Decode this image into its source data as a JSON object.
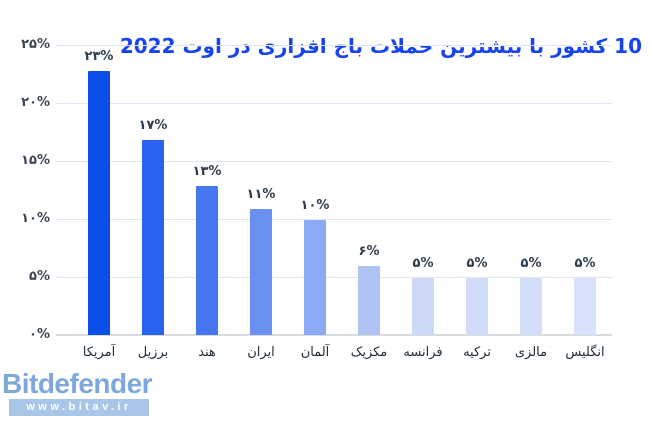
{
  "title": {
    "text": "10 کشور با بیشترین حملات باج افزاری در  اوت 2022",
    "color": "#1743f0"
  },
  "chart_data": {
    "type": "bar",
    "title": "10 کشور با بیشترین حملات باج افزاری در  اوت 2022",
    "categories": [
      "آمریکا",
      "برزیل",
      "هند",
      "ایران",
      "آلمان",
      "مکزیک",
      "فرانسه",
      "ترکیه",
      "مالزی",
      "انگلیس"
    ],
    "categories_en": [
      "USA",
      "Brazil",
      "India",
      "Iran",
      "Germany",
      "Mexico",
      "France",
      "Turkey",
      "Malaysia",
      "UK"
    ],
    "values": [
      23,
      17,
      13,
      11,
      10,
      6,
      5,
      5,
      5,
      5
    ],
    "value_labels": [
      "۲۳%",
      "۱۷%",
      "۱۳%",
      "۱۱%",
      "۱۰%",
      "۶%",
      "۵%",
      "۵%",
      "۵%",
      "۵%"
    ],
    "bar_colors": [
      "#0c4fe8",
      "#2a63ef",
      "#4677f1",
      "#6b90f3",
      "#8ba9f4",
      "#afc4f5",
      "#cdd9f8",
      "#d0dcf9",
      "#d3def9",
      "#d7e1fa"
    ],
    "xlabel": "",
    "ylabel": "",
    "ylim": [
      0,
      25
    ],
    "grid": true,
    "legend": "none",
    "y_ticks": [
      {
        "label": "۰%",
        "value": 0
      },
      {
        "label": "۵%",
        "value": 5
      },
      {
        "label": "۱۰%",
        "value": 10
      },
      {
        "label": "۱۵%",
        "value": 15
      },
      {
        "label": "۲۰%",
        "value": 20
      },
      {
        "label": "۲۵%",
        "value": 25
      }
    ]
  },
  "footer": {
    "logo_text": "Bitdefender",
    "logo_color": "#7ea8db",
    "band_text": "www.bitav.ir",
    "band_color": "#a8c6ea"
  }
}
